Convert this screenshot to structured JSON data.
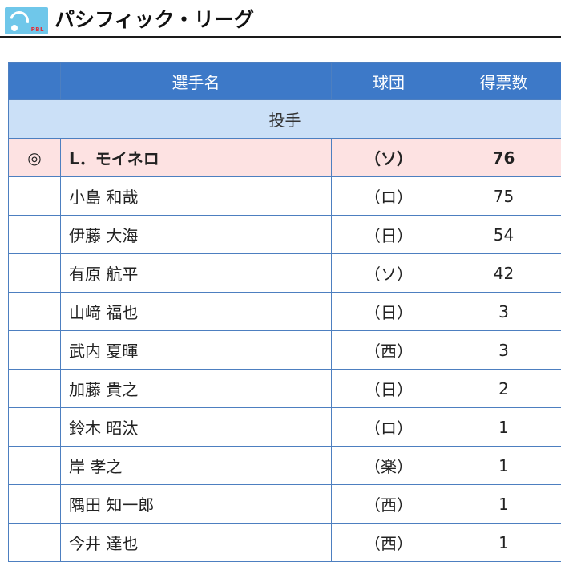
{
  "header": {
    "logo_text": "PBL",
    "title": "パシフィック・リーグ"
  },
  "table": {
    "columns": [
      "",
      "選手名",
      "球団",
      "得票数"
    ],
    "category": "投手",
    "rows": [
      {
        "mark": "◎",
        "name": "L．モイネロ",
        "team": "（ソ）",
        "votes": "76"
      },
      {
        "mark": "",
        "name": "小島 和哉",
        "team": "（ロ）",
        "votes": "75"
      },
      {
        "mark": "",
        "name": "伊藤 大海",
        "team": "（日）",
        "votes": "54"
      },
      {
        "mark": "",
        "name": "有原 航平",
        "team": "（ソ）",
        "votes": "42"
      },
      {
        "mark": "",
        "name": "山﨑 福也",
        "team": "（日）",
        "votes": "3"
      },
      {
        "mark": "",
        "name": "武内 夏暉",
        "team": "（西）",
        "votes": "3"
      },
      {
        "mark": "",
        "name": "加藤 貴之",
        "team": "（日）",
        "votes": "2"
      },
      {
        "mark": "",
        "name": "鈴木 昭汰",
        "team": "（ロ）",
        "votes": "1"
      },
      {
        "mark": "",
        "name": "岸 孝之",
        "team": "（楽）",
        "votes": "1"
      },
      {
        "mark": "",
        "name": "隅田 知一郎",
        "team": "（西）",
        "votes": "1"
      },
      {
        "mark": "",
        "name": "今井 達也",
        "team": "（西）",
        "votes": "1"
      }
    ]
  }
}
